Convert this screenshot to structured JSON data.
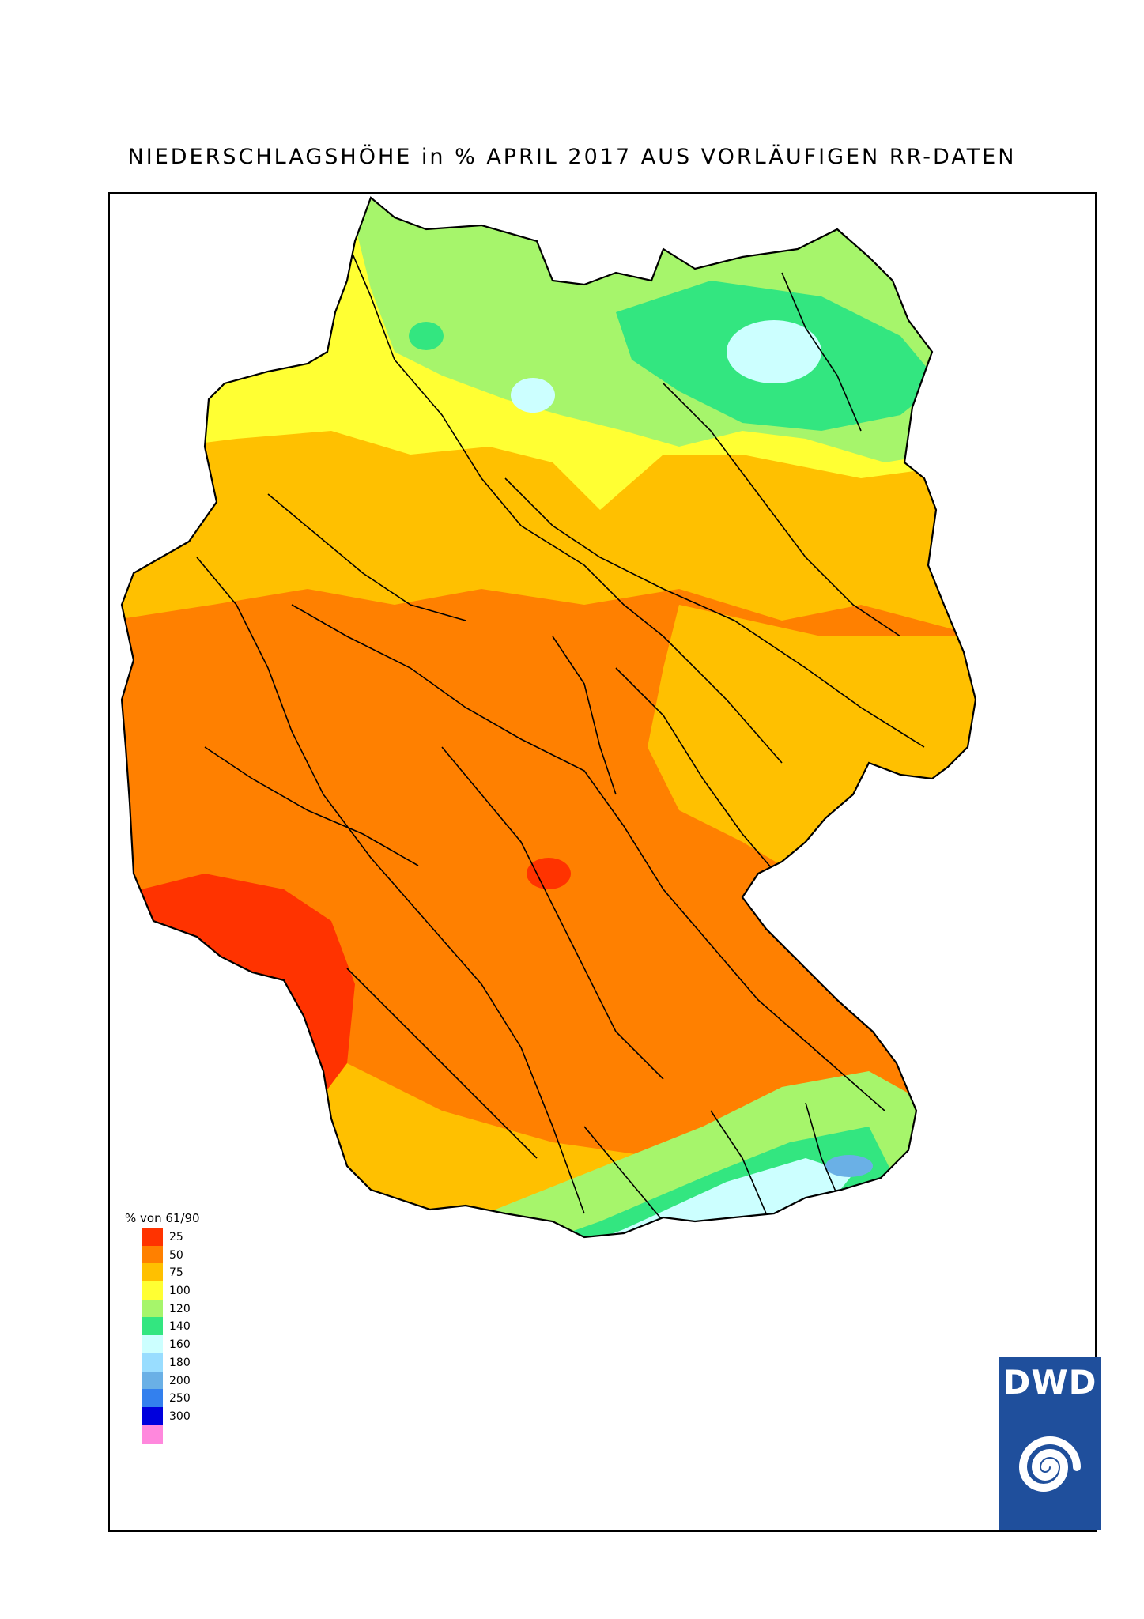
{
  "title": "NIEDERSCHLAGSHÖHE in % APRIL 2017 AUS VORLÄUFIGEN RR-DATEN",
  "legend": {
    "title": "% von 61/90",
    "classes": [
      {
        "label": "25",
        "color": "#ff3300"
      },
      {
        "label": "50",
        "color": "#ff8000"
      },
      {
        "label": "75",
        "color": "#ffc000"
      },
      {
        "label": "100",
        "color": "#ffff33"
      },
      {
        "label": "120",
        "color": "#a6f56b"
      },
      {
        "label": "140",
        "color": "#33e680"
      },
      {
        "label": "160",
        "color": "#ccffff"
      },
      {
        "label": "180",
        "color": "#99ddff"
      },
      {
        "label": "200",
        "color": "#6ab0e6"
      },
      {
        "label": "250",
        "color": "#3380ee"
      },
      {
        "label": "300",
        "color": "#0000dd"
      },
      {
        "label": "",
        "color": "#ff88dd"
      }
    ]
  },
  "logo": {
    "text": "DWD",
    "icon": "dwd-swirl-icon",
    "color": "#1f4f9c"
  },
  "map": {
    "region": "Germany",
    "rivers": "black lines",
    "colors": {
      "very_dry": "#ff3300",
      "dry": "#ff8000",
      "below_normal": "#ffc000",
      "normal": "#ffff33",
      "above_normal": "#a6f56b",
      "wet": "#33e680",
      "very_wet": "#ccffff",
      "wettest": "#6ab0e6"
    }
  }
}
